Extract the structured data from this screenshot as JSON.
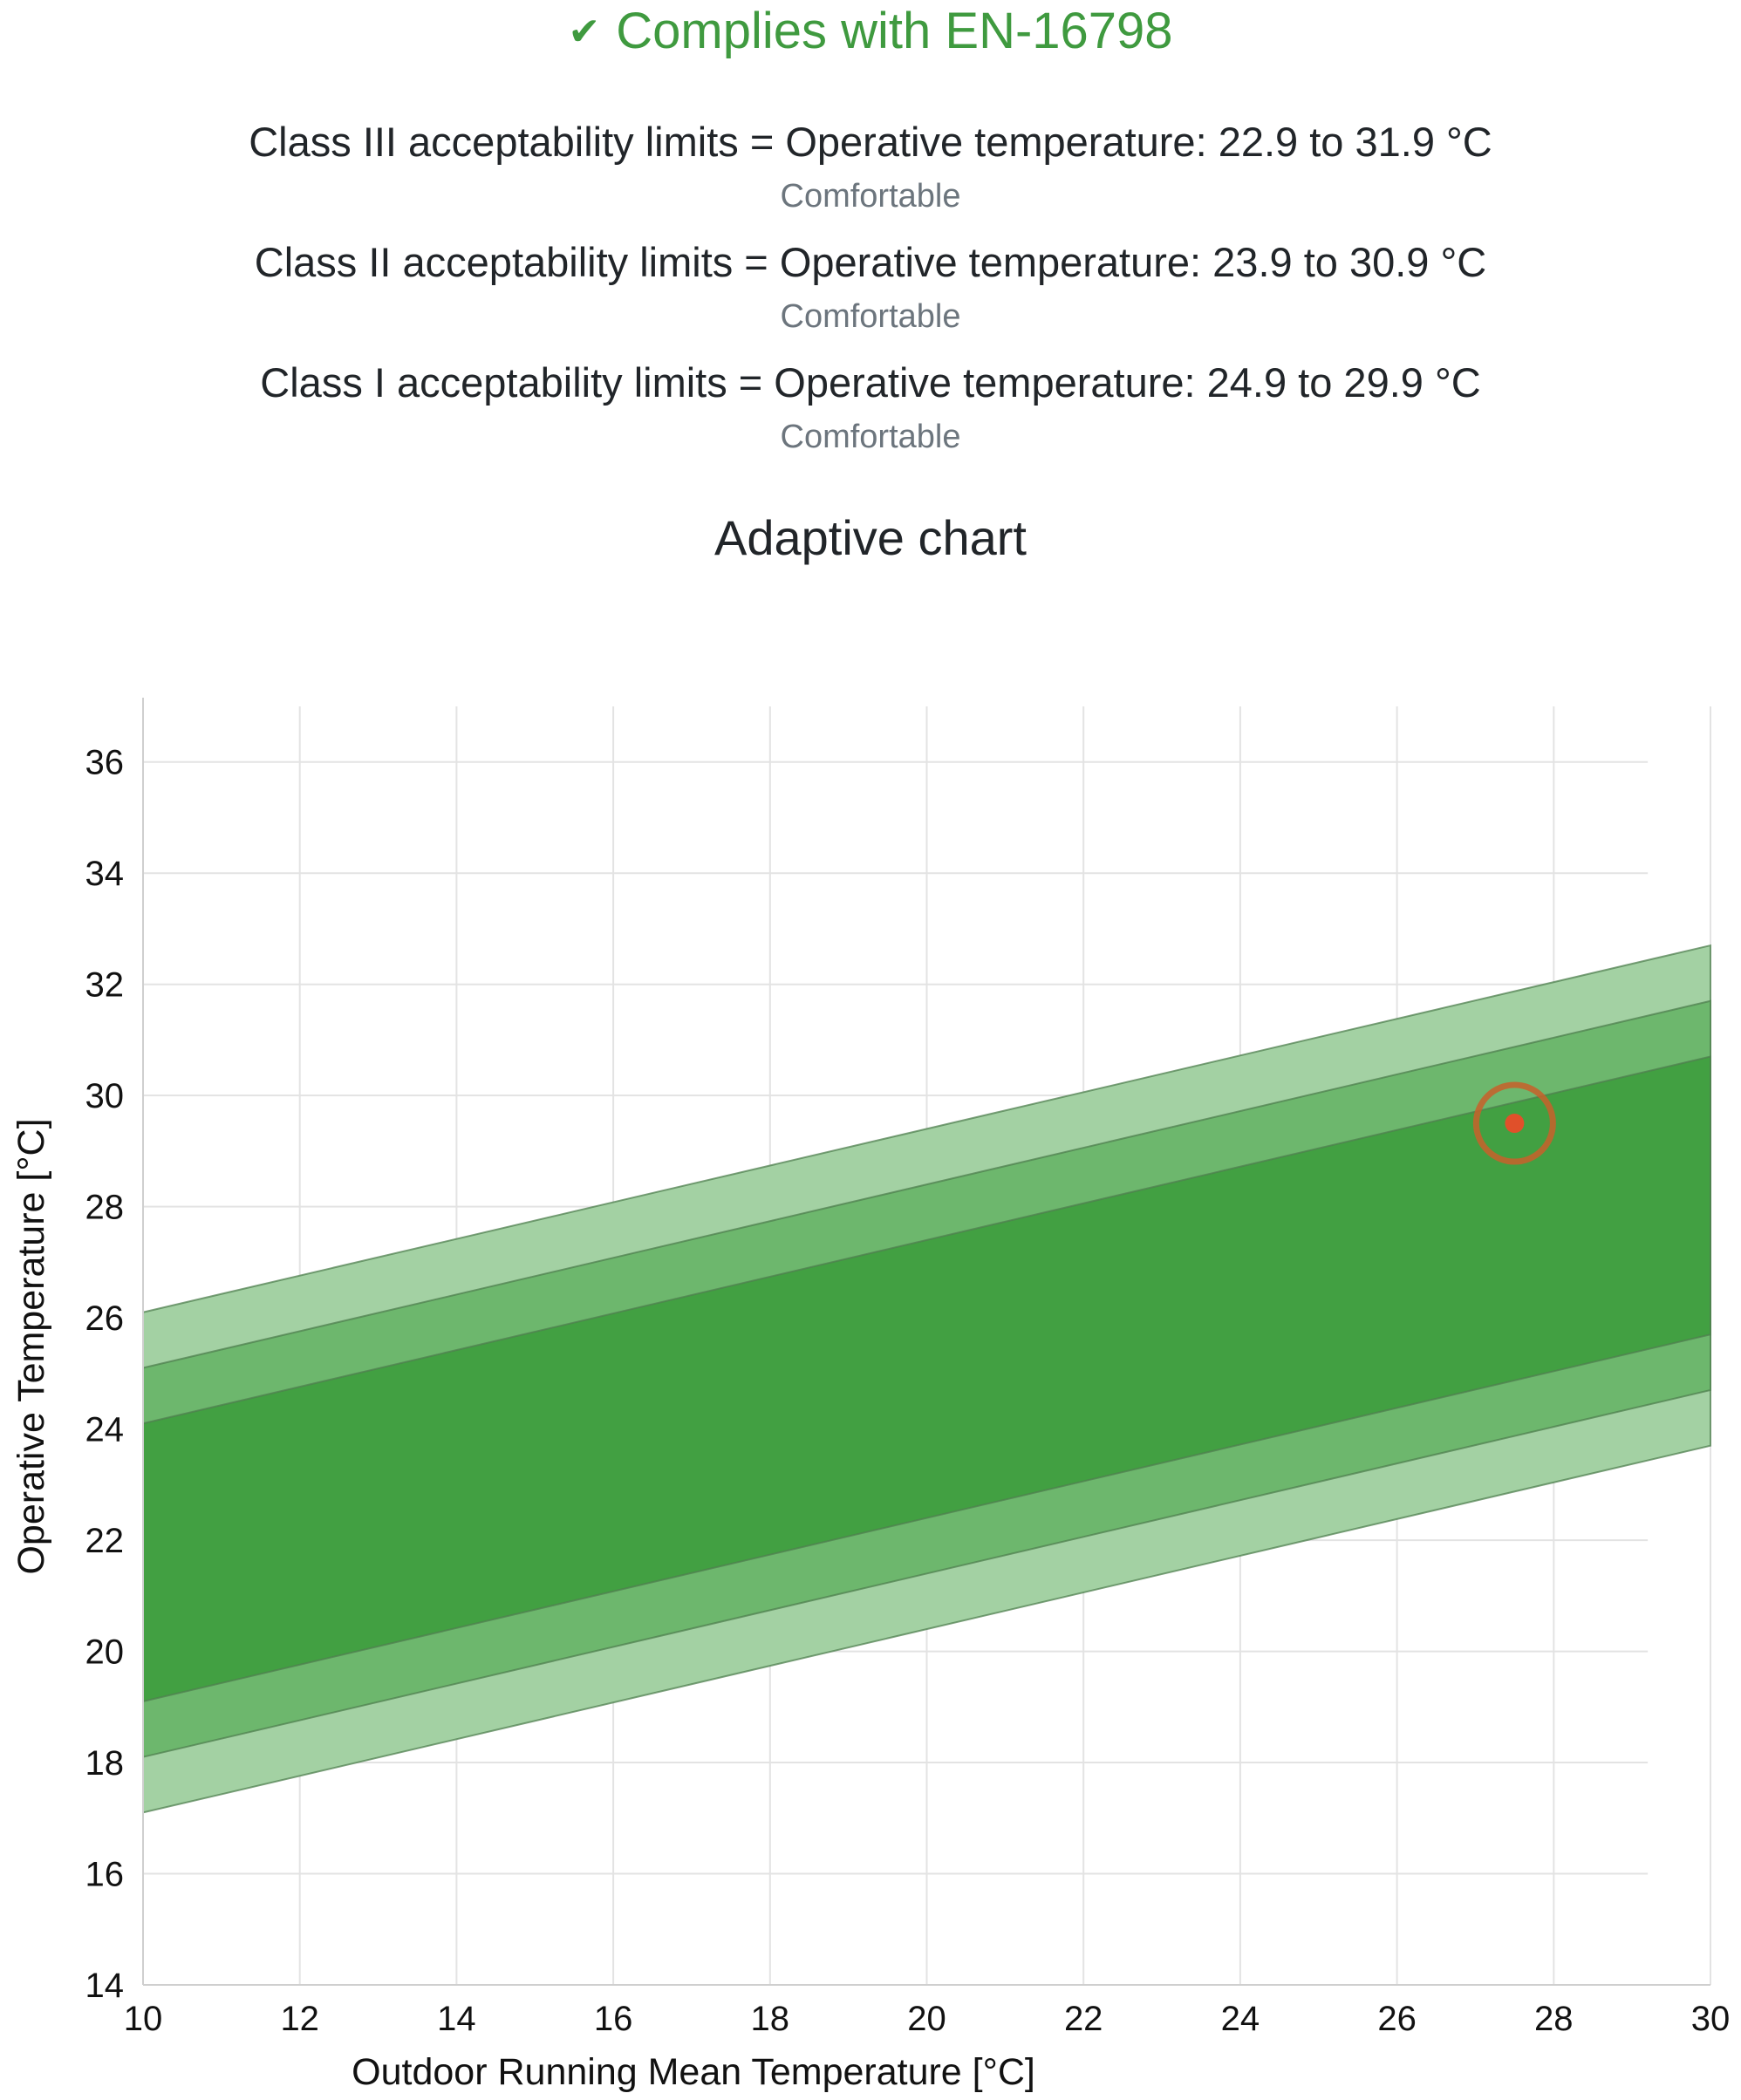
{
  "compliance": {
    "icon": "check-icon",
    "symbol": "✔",
    "text": "Complies with EN-16798",
    "color": "#3f9a3f"
  },
  "limits": [
    {
      "text": "Class III acceptability limits = Operative temperature: 22.9 to 31.9 °C",
      "status": "Comfortable"
    },
    {
      "text": "Class II acceptability limits = Operative temperature: 23.9 to 30.9 °C",
      "status": "Comfortable"
    },
    {
      "text": "Class I acceptability limits = Operative temperature: 24.9 to 29.9 °C",
      "status": "Comfortable"
    }
  ],
  "chart_title": "Adaptive chart",
  "chart_data": {
    "type": "area",
    "title": "",
    "xlabel": "Outdoor Running Mean Temperature [°C]",
    "ylabel": "Operative Temperature [°C]",
    "xlim": [
      10,
      30
    ],
    "ylim": [
      14,
      37
    ],
    "xticks": [
      10,
      12,
      14,
      16,
      18,
      20,
      22,
      24,
      26,
      28,
      30
    ],
    "yticks": [
      14,
      16,
      18,
      20,
      22,
      24,
      26,
      28,
      30,
      32,
      34,
      36
    ],
    "grid": true,
    "bands": [
      {
        "class": "III",
        "x": [
          10,
          30
        ],
        "lower": [
          17.1,
          23.7
        ],
        "upper": [
          26.1,
          32.7
        ],
        "fill": "#a3d1a3"
      },
      {
        "class": "II",
        "x": [
          10,
          30
        ],
        "lower": [
          18.1,
          24.7
        ],
        "upper": [
          25.1,
          31.7
        ],
        "fill": "#6db76d"
      },
      {
        "class": "I",
        "x": [
          10,
          30
        ],
        "lower": [
          19.1,
          25.7
        ],
        "upper": [
          24.1,
          30.7
        ],
        "fill": "#42a042"
      }
    ],
    "point": {
      "x": 27.5,
      "y": 29.5,
      "color": "#e0502a",
      "ring_color": "#c8602a"
    }
  }
}
